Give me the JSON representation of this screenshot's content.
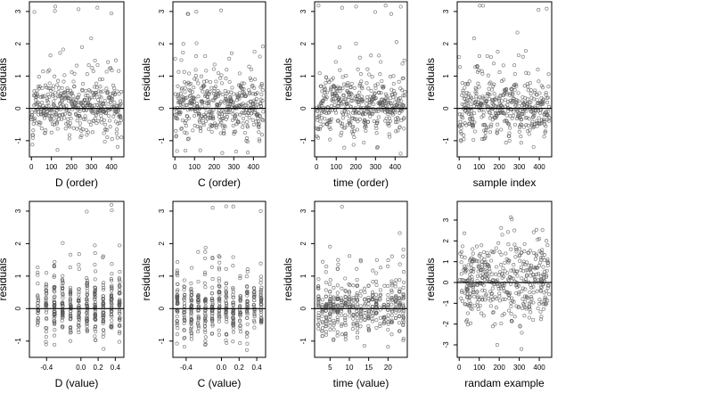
{
  "colors": {
    "point": "#555555",
    "axis": "#000000",
    "zero_line": "#000000",
    "background": "#ffffff"
  },
  "chart_data": [
    {
      "type": "scatter",
      "xlabel": "D (order)",
      "ylabel": "residuals",
      "xticks": [
        "0",
        "100",
        "200",
        "300",
        "400"
      ],
      "xtick_values": [
        0,
        100,
        200,
        300,
        400
      ],
      "yticks": [
        "-1",
        "0",
        "1",
        "2",
        "3"
      ],
      "ytick_values": [
        -1,
        0,
        1,
        2,
        3
      ],
      "xlim": [
        -10,
        462
      ],
      "ylim": [
        -1.5,
        3.3
      ],
      "hline": 0,
      "pattern": "order",
      "x_range": [
        0,
        450
      ],
      "n": 450
    },
    {
      "type": "scatter",
      "xlabel": "C (order)",
      "ylabel": "residuals",
      "xticks": [
        "0",
        "100",
        "200",
        "300",
        "400"
      ],
      "xtick_values": [
        0,
        100,
        200,
        300,
        400
      ],
      "yticks": [
        "-1",
        "0",
        "1",
        "2",
        "3"
      ],
      "ytick_values": [
        -1,
        0,
        1,
        2,
        3
      ],
      "xlim": [
        -10,
        462
      ],
      "ylim": [
        -1.5,
        3.3
      ],
      "hline": 0,
      "pattern": "order",
      "x_range": [
        0,
        450
      ],
      "n": 450
    },
    {
      "type": "scatter",
      "xlabel": "time (order)",
      "ylabel": "residuals",
      "xticks": [
        "0",
        "100",
        "200",
        "300",
        "400"
      ],
      "xtick_values": [
        0,
        100,
        200,
        300,
        400
      ],
      "yticks": [
        "-1",
        "0",
        "1",
        "2",
        "3"
      ],
      "ytick_values": [
        -1,
        0,
        1,
        2,
        3
      ],
      "xlim": [
        -10,
        462
      ],
      "ylim": [
        -1.5,
        3.3
      ],
      "hline": 0,
      "pattern": "order",
      "x_range": [
        0,
        450
      ],
      "n": 450
    },
    {
      "type": "scatter",
      "xlabel": "sample index",
      "ylabel": "residuals",
      "xticks": [
        "0",
        "100",
        "200",
        "300",
        "400"
      ],
      "xtick_values": [
        0,
        100,
        200,
        300,
        400
      ],
      "yticks": [
        "-1",
        "0",
        "1",
        "2",
        "3"
      ],
      "ytick_values": [
        -1,
        0,
        1,
        2,
        3
      ],
      "xlim": [
        -10,
        462
      ],
      "ylim": [
        -1.5,
        3.3
      ],
      "hline": 0,
      "pattern": "order",
      "x_range": [
        0,
        450
      ],
      "n": 450
    },
    {
      "type": "scatter",
      "xlabel": "D (value)",
      "ylabel": "residuals",
      "xticks": [
        "-0.4",
        "0.0",
        "0.2",
        "0.4"
      ],
      "xtick_values": [
        -0.4,
        0.0,
        0.2,
        0.4
      ],
      "yticks": [
        "-1",
        "0",
        "1",
        "2",
        "3"
      ],
      "ytick_values": [
        -1,
        0,
        1,
        2,
        3
      ],
      "xlim": [
        -0.6,
        0.5
      ],
      "ylim": [
        -1.5,
        3.3
      ],
      "hline": 0,
      "pattern": "columns",
      "x_range": [
        -0.5,
        0.45
      ],
      "columns": 11,
      "n": 450
    },
    {
      "type": "scatter",
      "xlabel": "C (value)",
      "ylabel": "residuals",
      "xticks": [
        "-0.4",
        "0.0",
        "0.2",
        "0.4"
      ],
      "xtick_values": [
        -0.4,
        0.0,
        0.2,
        0.4
      ],
      "yticks": [
        "-1",
        "0",
        "1",
        "2",
        "3"
      ],
      "ytick_values": [
        -1,
        0,
        1,
        2,
        3
      ],
      "xlim": [
        -0.55,
        0.5
      ],
      "ylim": [
        -1.5,
        3.3
      ],
      "hline": 0,
      "pattern": "columns",
      "x_range": [
        -0.5,
        0.45
      ],
      "columns": 13,
      "n": 450
    },
    {
      "type": "scatter",
      "xlabel": "time (value)",
      "ylabel": "residuals",
      "xticks": [
        "5",
        "10",
        "15",
        "20"
      ],
      "xtick_values": [
        5,
        10,
        15,
        20
      ],
      "yticks": [
        "-1",
        "0",
        "1",
        "2",
        "3"
      ],
      "ytick_values": [
        -1,
        0,
        1,
        2,
        3
      ],
      "xlim": [
        1,
        25
      ],
      "ylim": [
        -1.5,
        3.3
      ],
      "hline": 0,
      "pattern": "columns",
      "x_range": [
        2,
        24
      ],
      "columns": 23,
      "n": 450
    },
    {
      "type": "scatter",
      "xlabel": "randam example",
      "ylabel": "residuals",
      "xticks": [
        "0",
        "100",
        "200",
        "300",
        "400"
      ],
      "xtick_values": [
        0,
        100,
        200,
        300,
        400
      ],
      "yticks": [
        "-3",
        "-2",
        "-1",
        "0",
        "1",
        "2",
        "3"
      ],
      "ytick_values": [
        -3,
        -2,
        -1,
        0,
        1,
        2,
        3
      ],
      "xlim": [
        -10,
        462
      ],
      "ylim": [
        -3.6,
        3.9
      ],
      "hline": 0,
      "pattern": "random",
      "x_range": [
        0,
        450
      ],
      "n": 450
    }
  ]
}
